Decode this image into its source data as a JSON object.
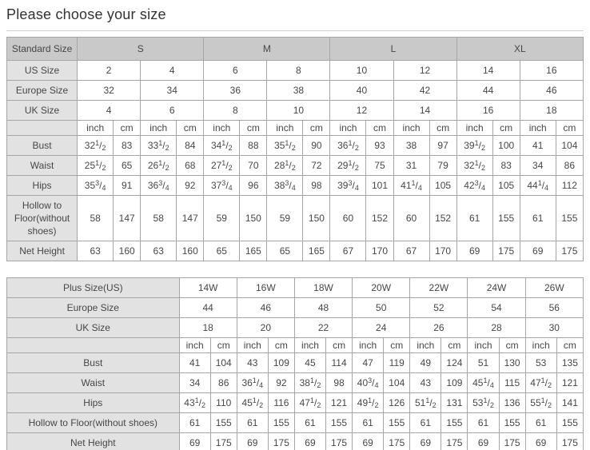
{
  "page": {
    "title": "Please choose your size"
  },
  "standard_table": {
    "rows": [
      {
        "label": "Standard Size",
        "span": 4,
        "head": true,
        "cells": [
          "S",
          "M",
          "L",
          "XL"
        ]
      },
      {
        "label": "US Size",
        "span": 2,
        "cells": [
          "2",
          "4",
          "6",
          "8",
          "10",
          "12",
          "14",
          "16"
        ]
      },
      {
        "label": "Europe Size",
        "span": 2,
        "cells": [
          "32",
          "34",
          "36",
          "38",
          "40",
          "42",
          "44",
          "46"
        ]
      },
      {
        "label": "UK Size",
        "span": 2,
        "cells": [
          "4",
          "6",
          "8",
          "10",
          "12",
          "14",
          "16",
          "18"
        ]
      },
      {
        "label": "",
        "span": 1,
        "unit": true,
        "cells": [
          "inch",
          "cm",
          "inch",
          "cm",
          "inch",
          "cm",
          "inch",
          "cm",
          "inch",
          "cm",
          "inch",
          "cm",
          "inch",
          "cm",
          "inch",
          "cm"
        ]
      },
      {
        "label": "Bust",
        "span": 1,
        "cells": [
          "32{1/2}",
          "83",
          "33{1/2}",
          "84",
          "34{1/2}",
          "88",
          "35{1/2}",
          "90",
          "36{1/2}",
          "93",
          "38",
          "97",
          "39{1/2}",
          "100",
          "41",
          "104"
        ]
      },
      {
        "label": "Waist",
        "span": 1,
        "cells": [
          "25{1/2}",
          "65",
          "26{1/2}",
          "68",
          "27{1/2}",
          "70",
          "28{1/2}",
          "72",
          "29{1/2}",
          "75",
          "31",
          "79",
          "32{1/2}",
          "83",
          "34",
          "86"
        ]
      },
      {
        "label": "Hips",
        "span": 1,
        "cells": [
          "35{3/4}",
          "91",
          "36{3/4}",
          "92",
          "37{3/4}",
          "96",
          "38{3/4}",
          "98",
          "39{3/4}",
          "101",
          "41{1/4}",
          "105",
          "42{3/4}",
          "105",
          "44{1/4}",
          "112"
        ]
      },
      {
        "label": "Hollow to Floor(without shoes)",
        "span": 1,
        "cells": [
          "58",
          "147",
          "58",
          "147",
          "59",
          "150",
          "59",
          "150",
          "60",
          "152",
          "60",
          "152",
          "61",
          "155",
          "61",
          "155"
        ]
      },
      {
        "label": "Net Height",
        "span": 1,
        "cells": [
          "63",
          "160",
          "63",
          "160",
          "65",
          "165",
          "65",
          "165",
          "67",
          "170",
          "67",
          "170",
          "69",
          "175",
          "69",
          "175"
        ]
      }
    ]
  },
  "plus_table": {
    "rows": [
      {
        "label": "Plus Size(US)",
        "span": 2,
        "cells": [
          "14W",
          "16W",
          "18W",
          "20W",
          "22W",
          "24W",
          "26W"
        ]
      },
      {
        "label": "Europe Size",
        "span": 2,
        "cells": [
          "44",
          "46",
          "48",
          "50",
          "52",
          "54",
          "56"
        ]
      },
      {
        "label": "UK Size",
        "span": 2,
        "cells": [
          "18",
          "20",
          "22",
          "24",
          "26",
          "28",
          "30"
        ]
      },
      {
        "label": "",
        "span": 1,
        "unit": true,
        "cells": [
          "inch",
          "cm",
          "inch",
          "cm",
          "inch",
          "cm",
          "inch",
          "cm",
          "inch",
          "cm",
          "inch",
          "cm",
          "inch",
          "cm"
        ]
      },
      {
        "label": "Bust",
        "span": 1,
        "cells": [
          "41",
          "104",
          "43",
          "109",
          "45",
          "114",
          "47",
          "119",
          "49",
          "124",
          "51",
          "130",
          "53",
          "135"
        ]
      },
      {
        "label": "Waist",
        "span": 1,
        "cells": [
          "34",
          "86",
          "36{1/4}",
          "92",
          "38{1/2}",
          "98",
          "40{3/4}",
          "104",
          "43",
          "109",
          "45{1/4}",
          "115",
          "47{1/2}",
          "121"
        ]
      },
      {
        "label": "Hips",
        "span": 1,
        "cells": [
          "43{1/2}",
          "110",
          "45{1/2}",
          "116",
          "47{1/2}",
          "121",
          "49{1/2}",
          "126",
          "51{1/2}",
          "131",
          "53{1/2}",
          "136",
          "55{1/2}",
          "141"
        ]
      },
      {
        "label": "Hollow to Floor(without shoes)",
        "span": 1,
        "cells": [
          "61",
          "155",
          "61",
          "155",
          "61",
          "155",
          "61",
          "155",
          "61",
          "155",
          "61",
          "155",
          "61",
          "155"
        ]
      },
      {
        "label": "Net Height",
        "span": 1,
        "cells": [
          "69",
          "175",
          "69",
          "175",
          "69",
          "175",
          "69",
          "175",
          "69",
          "175",
          "69",
          "175",
          "69",
          "175"
        ]
      }
    ]
  }
}
